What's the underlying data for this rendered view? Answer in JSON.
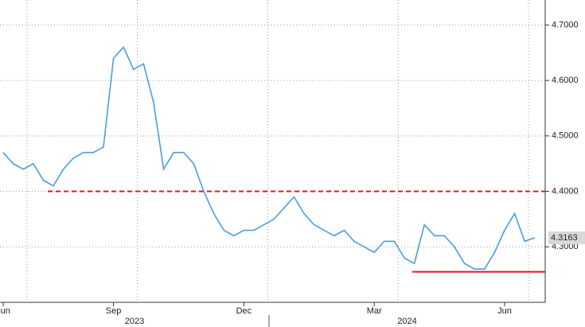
{
  "chart_data": {
    "type": "line",
    "categories": [
      "Jun",
      null,
      null,
      null,
      null,
      null,
      null,
      null,
      null,
      null,
      null,
      "Sep",
      null,
      null,
      null,
      null,
      null,
      null,
      null,
      null,
      null,
      null,
      null,
      null,
      "Dec",
      null,
      null,
      null,
      null,
      null,
      null,
      null,
      null,
      null,
      null,
      null,
      null,
      "Mar",
      null,
      null,
      null,
      null,
      null,
      null,
      null,
      null,
      null,
      null,
      null,
      null,
      "Jun",
      null,
      null,
      null
    ],
    "year_labels": [
      "2023",
      "2024"
    ],
    "series": [
      {
        "color": "#4a9de0",
        "values": [
          4.47,
          4.45,
          4.44,
          4.45,
          4.42,
          4.41,
          4.44,
          4.46,
          4.47,
          4.47,
          4.48,
          4.64,
          4.66,
          4.62,
          4.63,
          4.56,
          4.44,
          4.47,
          4.47,
          4.45,
          4.4,
          4.36,
          4.33,
          4.32,
          4.33,
          4.33,
          4.34,
          4.35,
          4.37,
          4.39,
          4.36,
          4.34,
          4.33,
          4.32,
          4.33,
          4.31,
          4.3,
          4.29,
          4.31,
          4.31,
          4.28,
          4.27,
          4.34,
          4.32,
          4.32,
          4.3,
          4.27,
          4.26,
          4.26,
          4.29,
          4.33,
          4.36,
          4.31,
          4.3163
        ]
      }
    ],
    "last_value": 4.3163,
    "hlines": [
      {
        "value": 4.4,
        "color": "#e8141a",
        "style": "dashed"
      },
      {
        "value": 4.255,
        "color": "#e8141a",
        "style": "solid"
      }
    ],
    "ylim": [
      4.2,
      4.745
    ],
    "yticks": [
      {
        "value": 4.3,
        "label": "4.3000"
      },
      {
        "value": 4.4,
        "label": "4.4000"
      },
      {
        "value": 4.5,
        "label": "4.5000"
      },
      {
        "value": 4.6,
        "label": "4.6000"
      },
      {
        "value": 4.7,
        "label": "4.7000"
      }
    ],
    "grid": true
  }
}
